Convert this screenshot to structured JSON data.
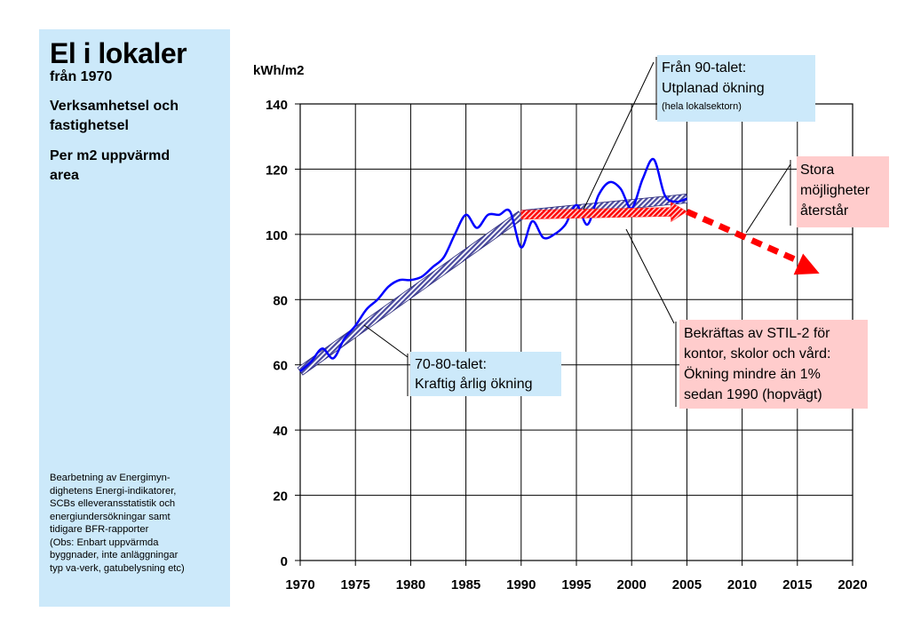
{
  "sidebar": {
    "title": "El i lokaler",
    "subtitle": "från 1970",
    "para1_line1": "Verksamhetsel och",
    "para1_line2": "fastighetsel",
    "para2_line1": "Per m2 uppvärmd",
    "para2_line2": "area",
    "source_lines": [
      "Bearbetning av Energimyn-",
      "dighetens Energi-indikatorer,",
      "SCBs elleveransstatistik och",
      "energiundersökningar samt",
      "tidigare BFR-rapporter",
      "(Obs: Enbart uppvärmda",
      "byggnader, inte anläggningar",
      "typ va-verk, gatubelysning etc)"
    ]
  },
  "colors": {
    "sidebar_bg": "#cce9fa",
    "callout_blue": "#cce9fa",
    "callout_pink": "#ffcccc",
    "data_line": "#0000ff",
    "trend_purple": "#5555aa",
    "forecast_red": "#ff0000"
  },
  "chart_data": {
    "type": "line",
    "ylabel": "kWh/m2",
    "xlim": [
      1970,
      2020
    ],
    "ylim": [
      0,
      140
    ],
    "x_ticks": [
      "1970",
      "1975",
      "1980",
      "1985",
      "1990",
      "1995",
      "2000",
      "2005",
      "2010",
      "2015",
      "2020"
    ],
    "y_ticks": [
      "0",
      "20",
      "40",
      "60",
      "80",
      "100",
      "120",
      "140"
    ],
    "grid": true,
    "series": [
      {
        "x": [
          1970,
          1971,
          1972,
          1973,
          1974,
          1975,
          1976,
          1977,
          1978,
          1979,
          1980,
          1981,
          1982,
          1983,
          1984,
          1985,
          1986,
          1987,
          1988,
          1989,
          1990,
          1991,
          1992,
          1993,
          1994,
          1995,
          1996,
          1997,
          1998,
          1999,
          2000,
          2001,
          2002,
          2003,
          2004,
          2005
        ],
        "y": [
          58,
          61,
          65,
          62,
          68,
          72,
          77,
          80,
          84,
          86,
          86,
          87,
          90,
          93,
          100,
          106,
          102,
          106,
          106,
          107,
          96,
          104,
          99,
          100,
          103,
          109,
          103,
          112,
          116,
          114,
          108,
          117,
          123,
          112,
          110,
          111
        ]
      }
    ],
    "trend_lines": [
      {
        "x": [
          1970,
          1990
        ],
        "y": [
          58,
          106
        ]
      },
      {
        "x": [
          1990,
          2005
        ],
        "y": [
          106,
          111
        ]
      }
    ],
    "forecast": {
      "x": [
        1990,
        2005,
        2015,
        2017
      ],
      "y": [
        106,
        107,
        92,
        88
      ]
    },
    "annotations": [
      {
        "lines": [
          "Från 90-talet:",
          "Utplanad ökning"
        ],
        "small": "(hela lokalsektorn)"
      },
      {
        "lines": [
          "Stora",
          "möjligheter",
          "återstår"
        ]
      },
      {
        "lines": [
          "70-80-talet:",
          "Kraftig årlig ökning"
        ]
      },
      {
        "lines": [
          "Bekräftas av STIL-2 för",
          "kontor, skolor och vård:",
          "Ökning mindre än 1%",
          "sedan 1990 (hopvägt)"
        ]
      }
    ]
  }
}
